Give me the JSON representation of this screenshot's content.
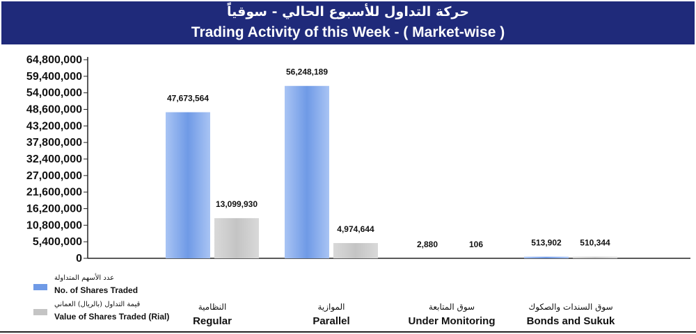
{
  "header": {
    "title_ar": "حركة التداول للأسبوع الحالي - سوقياً",
    "title_en": "Trading Activity of this Week - ( Market-wise )"
  },
  "colors": {
    "header_bg": "#1f2a7a",
    "shares_series": "#6f9ae6",
    "value_series": "#c4c4c4"
  },
  "legend": {
    "items": [
      {
        "label_ar": "عدد الأسهم المتداولة",
        "label_en": "No. of Shares Traded",
        "color": "#6f9ae6"
      },
      {
        "label_ar": "قيمة التداول (بالريال) العماني",
        "label_en": "Value of Shares Traded (Rial)",
        "color": "#c4c4c4"
      }
    ]
  },
  "chart_data": {
    "type": "bar",
    "title": "Trading Activity of this Week - ( Market-wise )",
    "categories": [
      "Regular",
      "Parallel",
      "Under Monitoring",
      "Bonds and Sukuk"
    ],
    "categories_ar": [
      "النظامية",
      "الموازية",
      "سوق المتابعة",
      "سوق السندات والصكوك"
    ],
    "series": [
      {
        "name": "No. of Shares Traded",
        "values": [
          47673564,
          56248189,
          2880,
          513902
        ],
        "labels": [
          "47,673,564",
          "56,248,189",
          "2,880",
          "513,902"
        ]
      },
      {
        "name": "Value of Shares Traded (Rial)",
        "values": [
          13099930,
          4974644,
          106,
          510344
        ],
        "labels": [
          "13,099,930",
          "4,974,644",
          "106",
          "510,344"
        ]
      }
    ],
    "ylim": [
      0,
      64800000
    ],
    "yticks": [
      0,
      5400000,
      10800000,
      16200000,
      21600000,
      27000000,
      32400000,
      37800000,
      43200000,
      48600000,
      54000000,
      59400000,
      64800000
    ],
    "ytick_labels": [
      "0",
      "5,400,000",
      "10,800,000",
      "16,200,000",
      "21,600,000",
      "27,000,000",
      "32,400,000",
      "37,800,000",
      "43,200,000",
      "48,600,000",
      "54,000,000",
      "59,400,000",
      "64,800,000"
    ],
    "grid": false,
    "legend_position": "bottom-left"
  }
}
